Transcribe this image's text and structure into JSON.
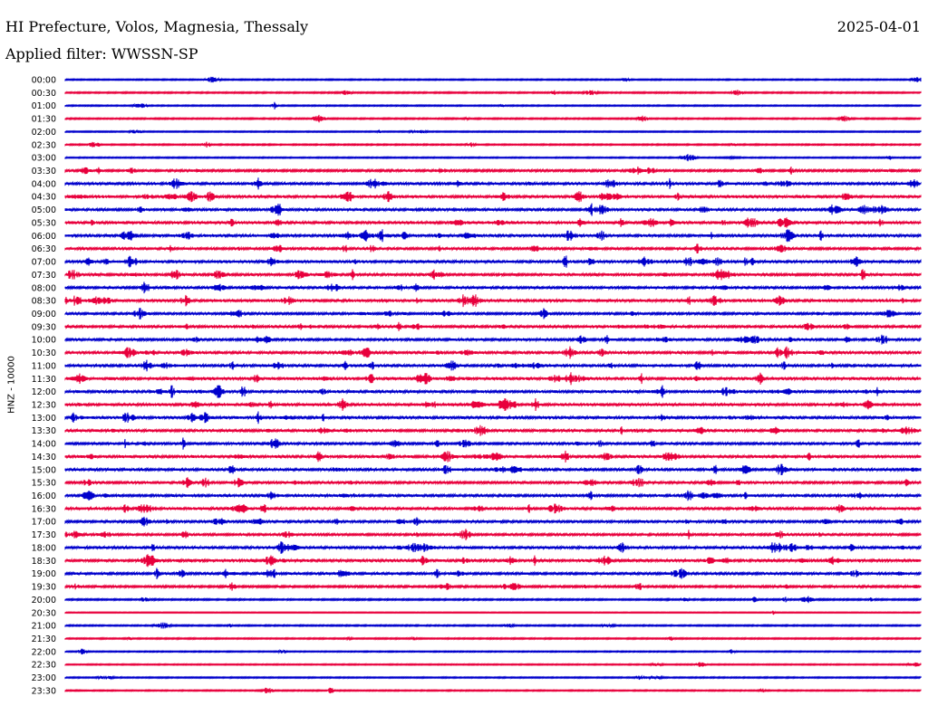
{
  "header": {
    "station": "HI Prefecture, Volos, Magnesia, Thessaly",
    "date": "2025-04-01",
    "filter": "Applied filter: WWSSN-SP"
  },
  "chart_data": {
    "type": "line",
    "title": "HI Prefecture, Volos, Magnesia, Thessaly",
    "ylabel": "HNZ - 10000",
    "colors": [
      "#0000cc",
      "#e8003c"
    ],
    "rows": [
      {
        "time": "00:00",
        "activity": 0.15
      },
      {
        "time": "00:30",
        "activity": 0.2
      },
      {
        "time": "01:00",
        "activity": 0.15
      },
      {
        "time": "01:30",
        "activity": 0.2
      },
      {
        "time": "02:00",
        "activity": 0.12
      },
      {
        "time": "02:30",
        "activity": 0.18
      },
      {
        "time": "03:00",
        "activity": 0.15
      },
      {
        "time": "03:30",
        "activity": 0.45
      },
      {
        "time": "04:00",
        "activity": 0.6
      },
      {
        "time": "04:30",
        "activity": 0.7
      },
      {
        "time": "05:00",
        "activity": 0.6
      },
      {
        "time": "05:30",
        "activity": 0.7
      },
      {
        "time": "06:00",
        "activity": 0.65
      },
      {
        "time": "06:30",
        "activity": 0.55
      },
      {
        "time": "07:00",
        "activity": 0.7
      },
      {
        "time": "07:30",
        "activity": 0.6
      },
      {
        "time": "08:00",
        "activity": 0.55
      },
      {
        "time": "08:30",
        "activity": 0.7
      },
      {
        "time": "09:00",
        "activity": 0.5
      },
      {
        "time": "09:30",
        "activity": 0.6
      },
      {
        "time": "10:00",
        "activity": 0.55
      },
      {
        "time": "10:30",
        "activity": 0.6
      },
      {
        "time": "11:00",
        "activity": 0.65
      },
      {
        "time": "11:30",
        "activity": 0.7
      },
      {
        "time": "12:00",
        "activity": 0.7
      },
      {
        "time": "12:30",
        "activity": 0.7
      },
      {
        "time": "13:00",
        "activity": 0.65
      },
      {
        "time": "13:30",
        "activity": 0.6
      },
      {
        "time": "14:00",
        "activity": 0.55
      },
      {
        "time": "14:30",
        "activity": 0.65
      },
      {
        "time": "15:00",
        "activity": 0.6
      },
      {
        "time": "15:30",
        "activity": 0.55
      },
      {
        "time": "16:00",
        "activity": 0.6
      },
      {
        "time": "16:30",
        "activity": 0.65
      },
      {
        "time": "17:00",
        "activity": 0.55
      },
      {
        "time": "17:30",
        "activity": 0.5
      },
      {
        "time": "18:00",
        "activity": 0.65
      },
      {
        "time": "18:30",
        "activity": 0.65
      },
      {
        "time": "19:00",
        "activity": 0.55
      },
      {
        "time": "19:30",
        "activity": 0.45
      },
      {
        "time": "20:00",
        "activity": 0.25
      },
      {
        "time": "20:30",
        "activity": 0.05
      },
      {
        "time": "21:00",
        "activity": 0.2
      },
      {
        "time": "21:30",
        "activity": 0.18
      },
      {
        "time": "22:00",
        "activity": 0.12
      },
      {
        "time": "22:30",
        "activity": 0.12
      },
      {
        "time": "23:00",
        "activity": 0.15
      },
      {
        "time": "23:30",
        "activity": 0.15
      }
    ]
  }
}
